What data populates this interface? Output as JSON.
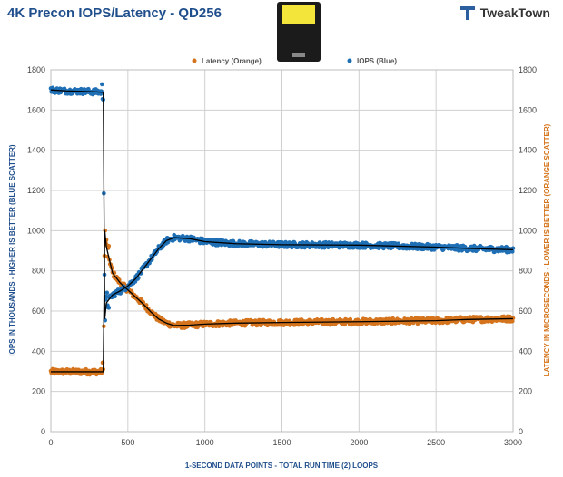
{
  "page": {
    "title": "4K Precon IOPS/Latency - QD256",
    "brand": "TweakTown"
  },
  "chart_data": {
    "type": "scatter",
    "title": "4K Precon IOPS/Latency - QD256",
    "xlabel": "1-SECOND  DATA POINTS - TOTAL RUN TIME (2) LOOPS",
    "ylabel_left": "IOPS IN THOUSANDS - HIGHER  IS BETTER (BLUE SCATTER)",
    "ylabel_right": "LATENCY IN MICROSECONDS - LOWER IS BETTER (ORANGE SCATTER)",
    "xlim": [
      0,
      3000
    ],
    "ylim": [
      0,
      1800
    ],
    "ylim_right": [
      0,
      1800
    ],
    "x_ticks": [
      0,
      500,
      1000,
      1500,
      2000,
      2500,
      3000
    ],
    "y_ticks": [
      0,
      200,
      400,
      600,
      800,
      1000,
      1200,
      1400,
      1600,
      1800
    ],
    "grid": true,
    "legend_position": "top-right",
    "colors": {
      "iops": "#1f6fb5",
      "latency": "#d5741c",
      "trend": "#000000"
    },
    "series": [
      {
        "name": "Latency (Orange)",
        "axis": "right",
        "x": [
          0,
          100,
          200,
          300,
          340,
          350,
          360,
          400,
          450,
          500,
          550,
          600,
          650,
          700,
          750,
          800,
          900,
          1000,
          1200,
          1500,
          2000,
          2500,
          2700,
          3000
        ],
        "y": [
          298,
          298,
          298,
          298,
          298,
          1000,
          920,
          790,
          740,
          705,
          670,
          635,
          595,
          560,
          540,
          528,
          530,
          535,
          540,
          543,
          547,
          552,
          558,
          562
        ]
      },
      {
        "name": "IOPS (Blue)",
        "axis": "left",
        "x": [
          0,
          100,
          200,
          300,
          340,
          350,
          360,
          400,
          450,
          500,
          550,
          600,
          650,
          700,
          750,
          800,
          900,
          1000,
          1200,
          1500,
          2000,
          2500,
          2700,
          3000
        ],
        "y": [
          1700,
          1695,
          1693,
          1690,
          1688,
          560,
          640,
          680,
          700,
          725,
          760,
          810,
          860,
          910,
          950,
          965,
          960,
          945,
          935,
          930,
          928,
          918,
          912,
          905
        ]
      }
    ]
  }
}
